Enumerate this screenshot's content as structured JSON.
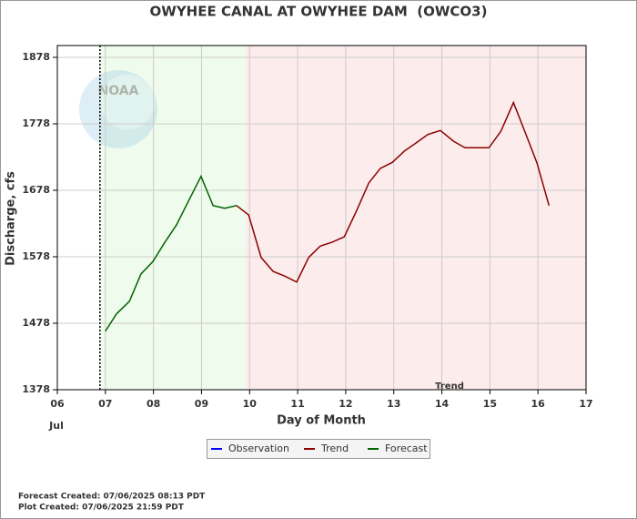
{
  "chart_data": {
    "type": "line",
    "title": "OWYHEE CANAL AT OWYHEE DAM  (OWCO3)",
    "x_label": "Day of Month",
    "y_label": "Discharge, cfs",
    "x_sublabel": "Jul",
    "annotation": "Trend",
    "xlim": [
      6,
      17
    ],
    "xticks": [
      {
        "value": 6,
        "label": "06"
      },
      {
        "value": 7,
        "label": "07"
      },
      {
        "value": 8,
        "label": "08"
      },
      {
        "value": 9,
        "label": "09"
      },
      {
        "value": 10,
        "label": "10"
      },
      {
        "value": 11,
        "label": "11"
      },
      {
        "value": 12,
        "label": "12"
      },
      {
        "value": 13,
        "label": "13"
      },
      {
        "value": 14,
        "label": "14"
      },
      {
        "value": 15,
        "label": "15"
      },
      {
        "value": 16,
        "label": "16"
      },
      {
        "value": 17,
        "label": "17"
      }
    ],
    "ylim": [
      1378,
      1878
    ],
    "yticks": [
      1378,
      1478,
      1578,
      1678,
      1778,
      1878
    ],
    "grid": true,
    "series": [
      {
        "name": "Observation",
        "color": "#0000ff",
        "x": [],
        "values": []
      },
      {
        "name": "Trend",
        "color": "#8b0000",
        "x": [
          9.73,
          9.98,
          10.24,
          10.49,
          10.73,
          10.98,
          11.23,
          11.47,
          11.72,
          11.97,
          12.23,
          12.48,
          12.72,
          12.97,
          13.22,
          13.46,
          13.71,
          13.97,
          14.24,
          14.48,
          14.73,
          14.98,
          15.23,
          15.49,
          15.74,
          15.98,
          16.23
        ],
        "values": [
          1655,
          1641,
          1577,
          1556,
          1549,
          1540,
          1577,
          1594,
          1600,
          1608,
          1648,
          1689,
          1711,
          1720,
          1737,
          1749,
          1762,
          1768,
          1752,
          1742,
          1742,
          1742,
          1767,
          1810,
          1764,
          1719,
          1655
        ]
      },
      {
        "name": "Forecast",
        "color": "#006400",
        "x": [
          7.0,
          7.23,
          7.5,
          7.74,
          7.99,
          8.23,
          8.48,
          8.73,
          8.99,
          9.24,
          9.48,
          9.73
        ],
        "values": [
          1466,
          1492,
          1511,
          1552,
          1571,
          1599,
          1626,
          1662,
          1699,
          1655,
          1651,
          1655
        ]
      }
    ],
    "footer": [
      "Forecast Created: 07/06/2025 08:13 PDT",
      "Plot Created: 07/06/2025 21:59 PDT"
    ]
  }
}
